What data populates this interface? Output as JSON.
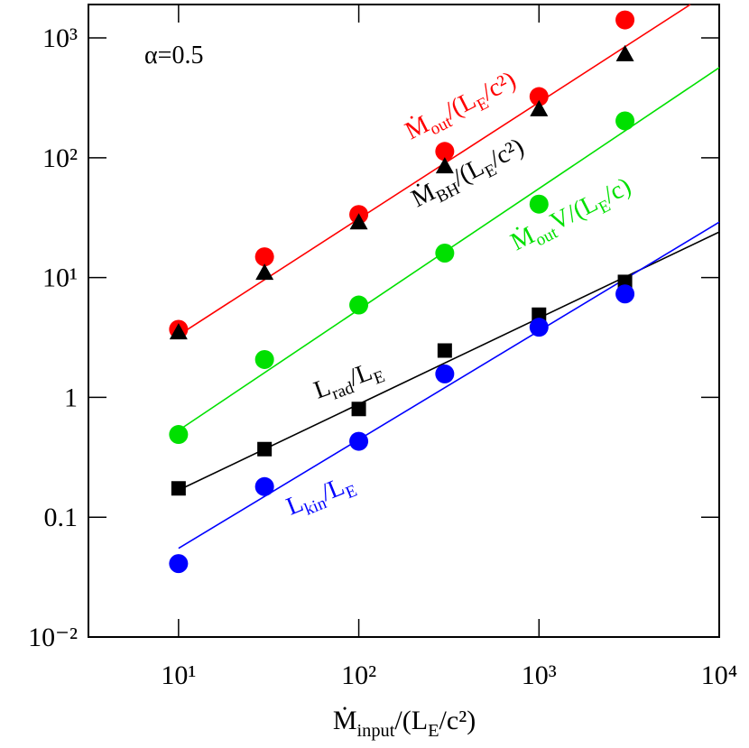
{
  "chart_data": {
    "type": "scatter",
    "x_label_parts": [
      "Ṁ",
      "input",
      "/(L",
      "E",
      "/c²)"
    ],
    "log_x": true,
    "log_y": true,
    "xlim": [
      3.1623,
      10000
    ],
    "ylim": [
      0.01,
      1900
    ],
    "xticks": [
      {
        "value": 10,
        "label": "10¹"
      },
      {
        "value": 100,
        "label": "10²"
      },
      {
        "value": 1000,
        "label": "10³"
      },
      {
        "value": 10000,
        "label": "10⁴"
      }
    ],
    "yticks": [
      {
        "value": 0.01,
        "label": "10⁻²"
      },
      0.1,
      1,
      {
        "value": 10,
        "label": "10¹"
      },
      {
        "value": 100,
        "label": "10²"
      },
      {
        "value": 1000,
        "label": "10³"
      }
    ],
    "x": [
      10,
      30,
      100,
      300,
      1000,
      3000
    ],
    "series": [
      {
        "color": "#ff0000",
        "marker": "circle",
        "values": [
          3.7,
          14.9,
          33.6,
          113,
          324,
          1413
        ]
      },
      {
        "color": "#000000",
        "marker": "triangle",
        "values": [
          3.5,
          11,
          29,
          85,
          255,
          733
        ]
      },
      {
        "color": "#00e000",
        "marker": "circle",
        "values": [
          0.49,
          2.07,
          5.9,
          16,
          41,
          203
        ]
      },
      {
        "color": "#000000",
        "marker": "square",
        "values": [
          0.174,
          0.37,
          0.8,
          2.46,
          4.9,
          9.2
        ]
      },
      {
        "color": "#0000ff",
        "marker": "circle",
        "values": [
          0.041,
          0.18,
          0.43,
          1.57,
          3.85,
          7.3
        ]
      }
    ],
    "fits": [
      {
        "color": "#ff0000",
        "x": [
          10,
          6918
        ],
        "values": [
          3.3,
          1900
        ]
      },
      {
        "color": "#00e000",
        "x": [
          10,
          10000
        ],
        "values": [
          0.53,
          565
        ]
      },
      {
        "color": "#000000",
        "x": [
          10,
          10000
        ],
        "values": [
          0.168,
          24
        ]
      },
      {
        "color": "#0000ff",
        "x": [
          10,
          10000
        ],
        "values": [
          0.055,
          29
        ]
      }
    ],
    "annotations": [
      {
        "parts": [
          "α=0.5"
        ],
        "color": "#000000"
      },
      {
        "parts": [
          "Ṁ",
          "out",
          "/(L",
          "E",
          "/c²)"
        ],
        "color": "#ff0000"
      },
      {
        "parts": [
          "Ṁ",
          "BH",
          "/(L",
          "E",
          "/c²)"
        ],
        "color": "#000000"
      },
      {
        "parts": [
          "Ṁ",
          "out",
          "V/(L",
          "E",
          "/c)"
        ],
        "color": "#00e000"
      },
      {
        "parts": [
          "L",
          "rad",
          "/L",
          "E"
        ],
        "color": "#000000"
      },
      {
        "parts": [
          "L",
          "kin",
          "/L",
          "E"
        ],
        "color": "#0000ff"
      }
    ]
  }
}
